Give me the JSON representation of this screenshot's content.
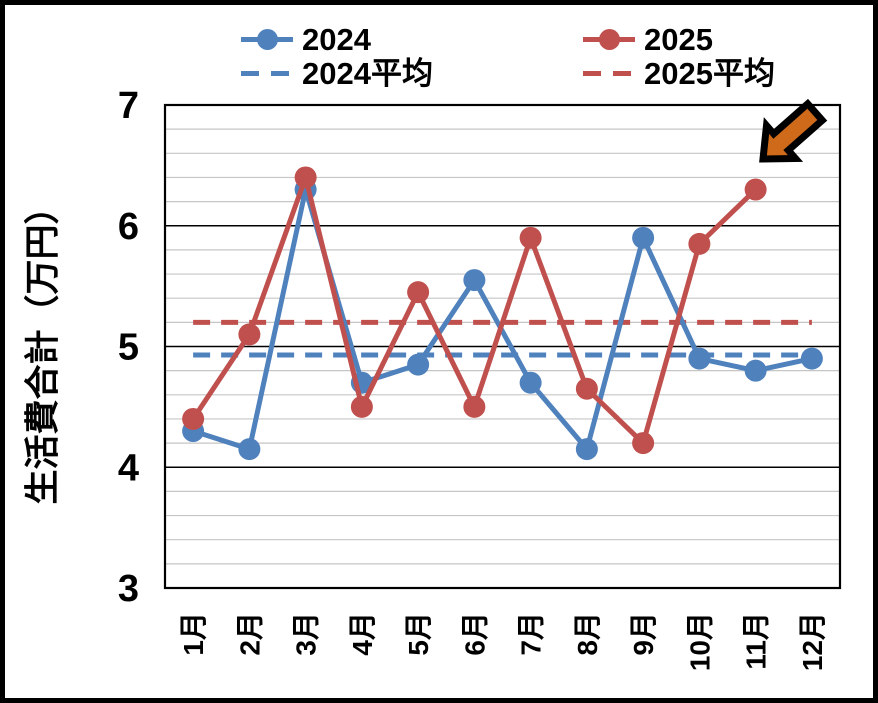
{
  "chart_data": {
    "type": "line",
    "title": "",
    "xlabel": "",
    "ylabel": "生活費合計（万円）",
    "categories": [
      "1月",
      "2月",
      "3月",
      "4月",
      "5月",
      "6月",
      "7月",
      "8月",
      "9月",
      "10月",
      "11月",
      "12月"
    ],
    "series": [
      {
        "name": "2024",
        "style": "solid",
        "marker": "circle",
        "color": "#4F81BD",
        "values": [
          4.3,
          4.15,
          6.3,
          4.7,
          4.85,
          5.55,
          4.7,
          4.15,
          5.9,
          4.9,
          4.8,
          4.9
        ]
      },
      {
        "name": "2025",
        "style": "solid",
        "marker": "circle",
        "color": "#C0504D",
        "values": [
          4.4,
          5.1,
          6.4,
          4.5,
          5.45,
          4.5,
          5.9,
          4.65,
          4.2,
          5.85,
          6.3
        ]
      },
      {
        "name": "2024平均",
        "style": "dashed",
        "color": "#4F81BD",
        "constant_value": 4.93
      },
      {
        "name": "2025平均",
        "style": "dashed",
        "color": "#C0504D",
        "constant_value": 5.2
      }
    ],
    "ylim": [
      3,
      7
    ],
    "ytick_step": 1,
    "ytick_labels": [
      "7",
      "6",
      "5",
      "4",
      "3"
    ],
    "minor_grid_step": 0.2,
    "grid": "horizontal",
    "legend_position": "top",
    "colors": {
      "major_gridline": "#000000",
      "minor_gridline": "#C6C6C6",
      "plot_border": "#000000",
      "canvas_border": "#000000",
      "background": "#FFFFFF"
    },
    "annotation": {
      "shape": "block-arrow",
      "direction": "down-left",
      "fill": "#CE6A19",
      "stroke": "#000000",
      "points_at": {
        "series": "2025",
        "category": "11月",
        "value": 6.3
      }
    }
  }
}
